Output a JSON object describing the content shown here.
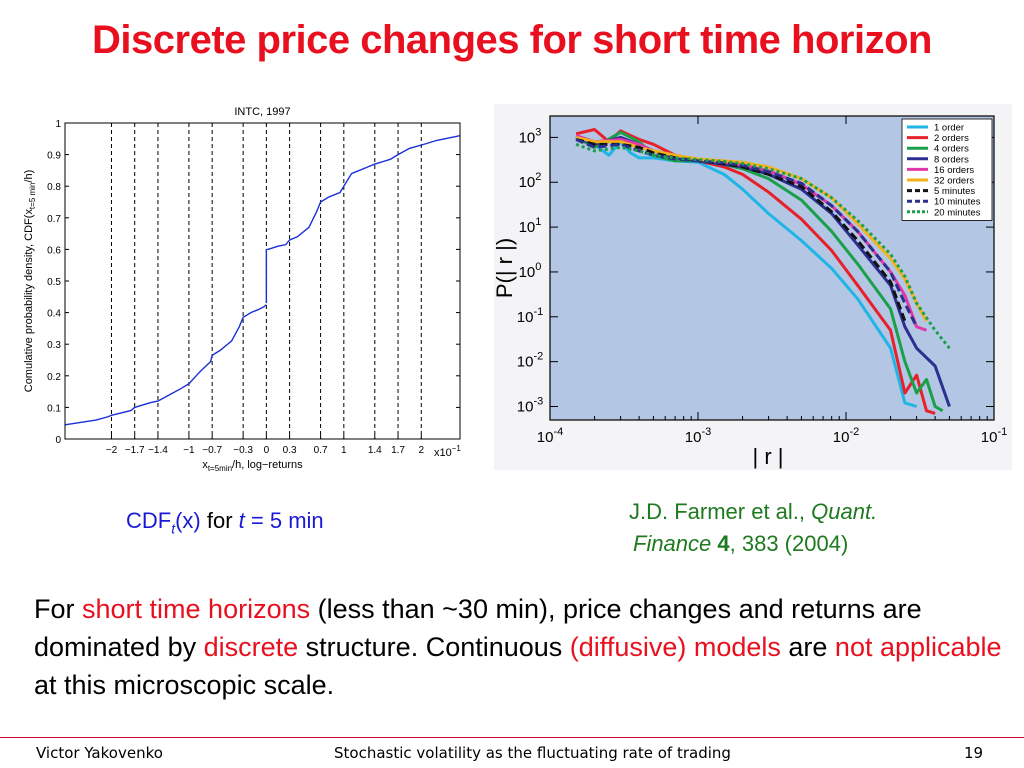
{
  "slide": {
    "title": "Discrete price changes for short time horizon",
    "caption_left": {
      "prefix": "CDF",
      "sub": "t",
      "mid": "(x)",
      "for_word": " for ",
      "t": "t",
      "rest": " = 5 min"
    },
    "caption_right": {
      "line1_a": "J.D. Farmer et al., ",
      "line1_b": "Quant.",
      "line2_a": "Finance",
      "line2_b": " 4",
      "line2_c": ", 383 (2004)"
    },
    "body": {
      "p1": "For ",
      "p2": "short time horizons",
      "p3": " (less than ~30 min), price changes and returns are dominated by ",
      "p4": "discrete",
      "p5": " structure.  Continuous ",
      "p6": "(diffusive) models",
      "p7": " are ",
      "p8": "not applicable",
      "p9": " at this microscopic scale."
    },
    "footer": {
      "author": "Victor Yakovenko",
      "center": "Stochastic volatility as the fluctuating rate of trading",
      "page": "19"
    },
    "colors": {
      "title": "#e8101e",
      "highlight": "#e8101e",
      "caption_blue": "#1a1ad6",
      "citation": "#1e7a1e",
      "rule": "#c8102e"
    }
  },
  "chart_data": [
    {
      "type": "line",
      "title": "INTC, 1997",
      "ylabel_main": "Comulative probability density, CDF(x",
      "ylabel_sub": "t=5 min",
      "ylabel_tail": "/h)",
      "xlabel_main": "x",
      "xlabel_sub": "t=5min",
      "xlabel_tail": "/h, log−returns",
      "x_multiplier": "x10",
      "x_multiplier_exp": "−1",
      "xlim": [
        -2.6,
        2.5
      ],
      "ylim": [
        0,
        1
      ],
      "xticks": [
        -2,
        -1.7,
        -1.4,
        -1,
        -0.7,
        -0.3,
        0,
        0.3,
        0.7,
        1,
        1.4,
        1.7,
        2
      ],
      "xtick_labels": [
        "−2",
        "−1.7",
        "−1.4",
        "−1",
        "−0.7",
        "−0.3",
        "0",
        "0.3",
        "0.7",
        "1",
        "1.4",
        "1.7",
        "2"
      ],
      "yticks": [
        0,
        0.1,
        0.2,
        0.3,
        0.4,
        0.5,
        0.6,
        0.7,
        0.8,
        0.9,
        1
      ],
      "ytick_labels": [
        "0",
        "0.1",
        "0.2",
        "0.3",
        "0.4",
        "0.5",
        "0.6",
        "0.7",
        "0.8",
        "0.9",
        "1"
      ],
      "dashed_lines_x": [
        -2,
        -1.7,
        -1.4,
        -1,
        -0.7,
        -0.3,
        0,
        0.3,
        0.7,
        1,
        1.4,
        1.7,
        2
      ],
      "series": [
        {
          "color": "#1a2fd6",
          "x": [
            -2.6,
            -2.2,
            -2.05,
            -2.0,
            -1.75,
            -1.7,
            -1.5,
            -1.4,
            -1.25,
            -1.1,
            -1.0,
            -0.85,
            -0.72,
            -0.7,
            -0.6,
            -0.45,
            -0.35,
            -0.3,
            -0.2,
            -0.1,
            -0.02
          ],
          "y": [
            0.045,
            0.06,
            0.07,
            0.075,
            0.09,
            0.1,
            0.115,
            0.12,
            0.14,
            0.16,
            0.175,
            0.215,
            0.245,
            0.265,
            0.28,
            0.31,
            0.355,
            0.385,
            0.4,
            0.41,
            0.42
          ]
        },
        {
          "color": "#1a2fd6",
          "x": [
            0.02,
            0.15,
            0.25,
            0.3,
            0.4,
            0.55,
            0.65,
            0.7,
            0.8,
            0.95,
            1.0,
            1.1,
            1.3,
            1.4,
            1.6,
            1.7,
            1.85,
            2.0,
            2.2,
            2.5
          ],
          "y": [
            0.6,
            0.61,
            0.615,
            0.63,
            0.64,
            0.67,
            0.72,
            0.75,
            0.765,
            0.78,
            0.8,
            0.84,
            0.86,
            0.87,
            0.885,
            0.9,
            0.92,
            0.93,
            0.945,
            0.96
          ]
        }
      ],
      "gaps": {
        "left_gap_x": -0.02,
        "left_gap_y": 0.42,
        "step_x": 0.0,
        "step_from": 0.43,
        "step_to": 0.6
      }
    },
    {
      "type": "line",
      "scale": "log-log",
      "xlabel": "| r |",
      "ylabel": "P(| r |)",
      "xlim": [
        0.0001,
        0.1
      ],
      "ylim": [
        0.0005,
        3000
      ],
      "xtick_labels": [
        {
          "base": "10",
          "exp": "-4"
        },
        {
          "base": "10",
          "exp": "-3"
        },
        {
          "base": "10",
          "exp": "-2"
        },
        {
          "base": "10",
          "exp": "-1"
        }
      ],
      "ytick_labels": [
        {
          "base": "10",
          "exp": "3"
        },
        {
          "base": "10",
          "exp": "2"
        },
        {
          "base": "10",
          "exp": "1"
        },
        {
          "base": "10",
          "exp": "0"
        },
        {
          "base": "10",
          "exp": "-1"
        },
        {
          "base": "10",
          "exp": "-2"
        },
        {
          "base": "10",
          "exp": "-3"
        }
      ],
      "background": "#b3c6e4",
      "legend_position": "top-right",
      "series": [
        {
          "name": "1 order",
          "color": "#1fb5e6",
          "dash": "solid",
          "x": [
            0.00015,
            0.0002,
            0.00025,
            0.0003,
            0.00035,
            0.0004,
            0.0005,
            0.0007,
            0.001,
            0.0015,
            0.002,
            0.003,
            0.005,
            0.008,
            0.012,
            0.02,
            0.025,
            0.03
          ],
          "y": [
            900,
            700,
            400,
            800,
            450,
            350,
            350,
            300,
            280,
            150,
            70,
            20,
            5,
            1.2,
            0.25,
            0.02,
            0.0012,
            0.001
          ]
        },
        {
          "name": "2 orders",
          "color": "#e8202a",
          "dash": "solid",
          "x": [
            0.00015,
            0.0002,
            0.00025,
            0.0003,
            0.0004,
            0.0005,
            0.0007,
            0.001,
            0.0015,
            0.002,
            0.003,
            0.005,
            0.008,
            0.012,
            0.02,
            0.025,
            0.03,
            0.035,
            0.04
          ],
          "y": [
            1200,
            1500,
            800,
            1400,
            900,
            700,
            400,
            300,
            220,
            150,
            60,
            15,
            3,
            0.5,
            0.05,
            0.002,
            0.005,
            0.0008,
            0.0007
          ]
        },
        {
          "name": "4 orders",
          "color": "#1aa04a",
          "dash": "solid",
          "x": [
            0.00015,
            0.0002,
            0.0003,
            0.0004,
            0.0005,
            0.0007,
            0.001,
            0.0015,
            0.002,
            0.003,
            0.005,
            0.008,
            0.012,
            0.02,
            0.025,
            0.03,
            0.035,
            0.04,
            0.045
          ],
          "y": [
            1000,
            600,
            1300,
            800,
            400,
            300,
            300,
            250,
            200,
            120,
            40,
            8,
            1.5,
            0.15,
            0.01,
            0.002,
            0.004,
            0.001,
            0.0008
          ]
        },
        {
          "name": "8 orders",
          "color": "#2b2f8f",
          "dash": "solid",
          "x": [
            0.00015,
            0.0002,
            0.0003,
            0.0004,
            0.0005,
            0.0007,
            0.001,
            0.0015,
            0.002,
            0.003,
            0.005,
            0.008,
            0.012,
            0.02,
            0.025,
            0.03,
            0.04,
            0.05
          ],
          "y": [
            1000,
            700,
            1000,
            700,
            500,
            350,
            300,
            250,
            220,
            150,
            70,
            20,
            4,
            0.5,
            0.06,
            0.02,
            0.008,
            0.001
          ]
        },
        {
          "name": "16 orders",
          "color": "#e03aa8",
          "dash": "solid",
          "x": [
            0.00015,
            0.0002,
            0.0003,
            0.0004,
            0.0005,
            0.0007,
            0.001,
            0.0015,
            0.002,
            0.003,
            0.005,
            0.008,
            0.012,
            0.02,
            0.025,
            0.03,
            0.035
          ],
          "y": [
            1100,
            800,
            900,
            700,
            500,
            400,
            320,
            280,
            240,
            180,
            90,
            30,
            8,
            1,
            0.3,
            0.06,
            0.05
          ]
        },
        {
          "name": "32 orders",
          "color": "#f2b21a",
          "dash": "solid",
          "x": [
            0.00015,
            0.0002,
            0.0003,
            0.0004,
            0.0005,
            0.0007,
            0.001,
            0.0015,
            0.002,
            0.003,
            0.005,
            0.008,
            0.012,
            0.02,
            0.025,
            0.03,
            0.035
          ],
          "y": [
            1000,
            800,
            800,
            600,
            500,
            400,
            330,
            300,
            280,
            220,
            120,
            45,
            12,
            2,
            0.7,
            0.2,
            0.08
          ]
        },
        {
          "name": "5 minutes",
          "color": "#111111",
          "dash": "long",
          "x": [
            0.00015,
            0.0002,
            0.0003,
            0.0004,
            0.0005,
            0.0007,
            0.001,
            0.0015,
            0.002,
            0.003,
            0.005,
            0.008,
            0.012,
            0.02,
            0.025
          ],
          "y": [
            900,
            700,
            700,
            600,
            450,
            350,
            300,
            260,
            220,
            150,
            80,
            22,
            5,
            0.6,
            0.08
          ]
        },
        {
          "name": "10 minutes",
          "color": "#2b2f8f",
          "dash": "long",
          "x": [
            0.00015,
            0.0002,
            0.0003,
            0.0004,
            0.0005,
            0.0007,
            0.001,
            0.0015,
            0.002,
            0.003,
            0.005,
            0.008,
            0.012,
            0.02,
            0.025,
            0.03
          ],
          "y": [
            900,
            600,
            700,
            500,
            400,
            330,
            300,
            270,
            240,
            170,
            95,
            30,
            8,
            1,
            0.2,
            0.06
          ]
        },
        {
          "name": "20 minutes",
          "color": "#1aa04a",
          "dash": "dot",
          "x": [
            0.00015,
            0.0002,
            0.0003,
            0.0004,
            0.0005,
            0.0007,
            0.001,
            0.0015,
            0.002,
            0.003,
            0.005,
            0.008,
            0.012,
            0.02,
            0.025,
            0.03,
            0.04,
            0.05
          ],
          "y": [
            700,
            500,
            600,
            500,
            400,
            350,
            320,
            290,
            260,
            200,
            120,
            45,
            14,
            2.5,
            0.8,
            0.2,
            0.05,
            0.02
          ]
        }
      ]
    }
  ]
}
